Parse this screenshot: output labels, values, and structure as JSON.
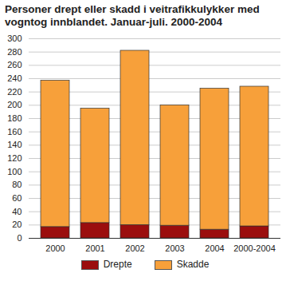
{
  "chart_data": {
    "type": "bar",
    "stacked": true,
    "title": "Personer drept eller skadd i veitrafikkulykker med vogntog innblandet. Januar-juli. 2000-2004",
    "categories": [
      "2000",
      "2001",
      "2002",
      "2003",
      "2004",
      "2000-2004"
    ],
    "series": [
      {
        "name": "Drepte",
        "color": "#9b0e0e",
        "values": [
          17,
          23,
          20,
          19,
          13,
          18
        ]
      },
      {
        "name": "Skadde",
        "color": "#f7a03a",
        "values": [
          220,
          172,
          262,
          181,
          212,
          210
        ]
      }
    ],
    "ylim": [
      0,
      300
    ],
    "yticks": [
      0,
      20,
      40,
      60,
      80,
      100,
      120,
      140,
      160,
      180,
      200,
      220,
      240,
      260,
      280,
      300
    ],
    "grid": true,
    "legend": "bottom"
  }
}
